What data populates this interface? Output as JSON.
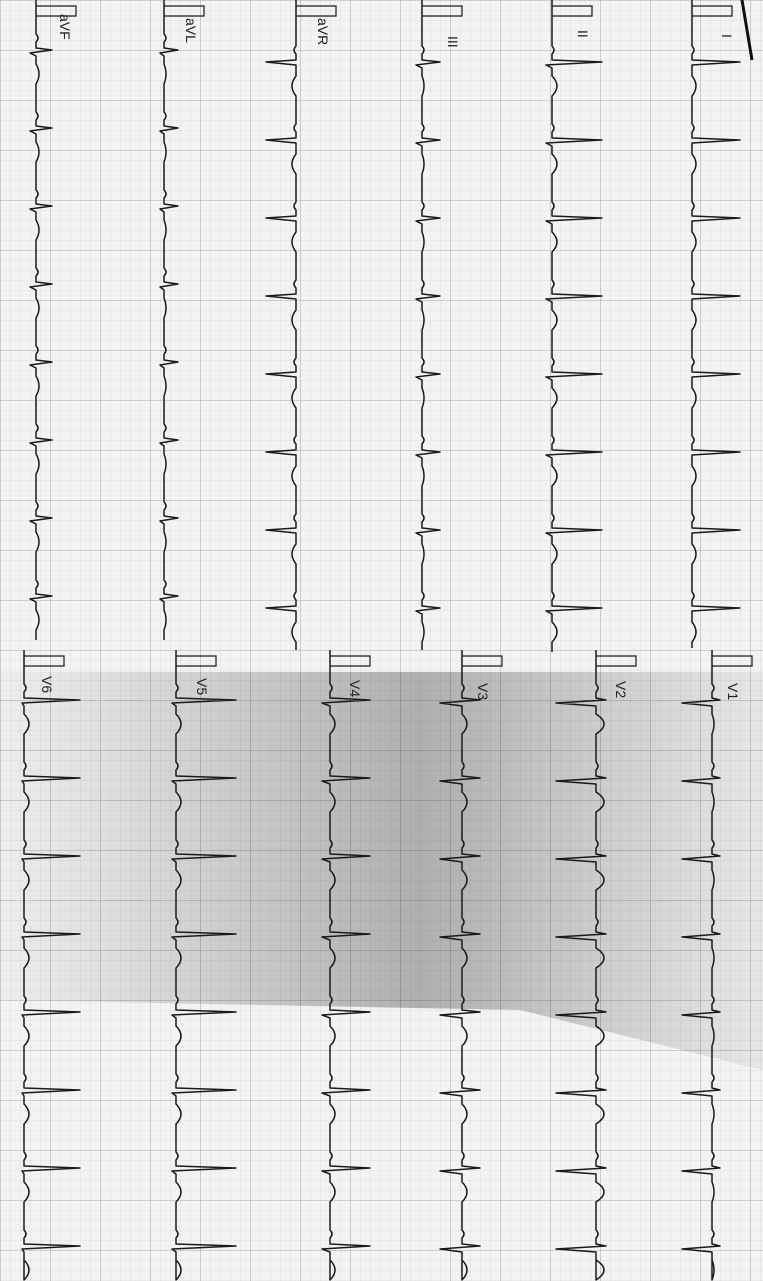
{
  "ecg": {
    "leads": {
      "I": "I",
      "II": "II",
      "III": "III",
      "aVR": "aVR",
      "aVL": "aVL",
      "aVF": "aVF",
      "V1": "V1",
      "V2": "V2",
      "V3": "V3",
      "V4": "V4",
      "V5": "V5",
      "V6": "V6"
    },
    "colors": {
      "paper": "#f3f3f1",
      "grid_minor": "#c9c9c9",
      "grid_major": "#a9a9a9",
      "trace": "#1a1a1a",
      "shadow": "#8a8a8a"
    }
  }
}
